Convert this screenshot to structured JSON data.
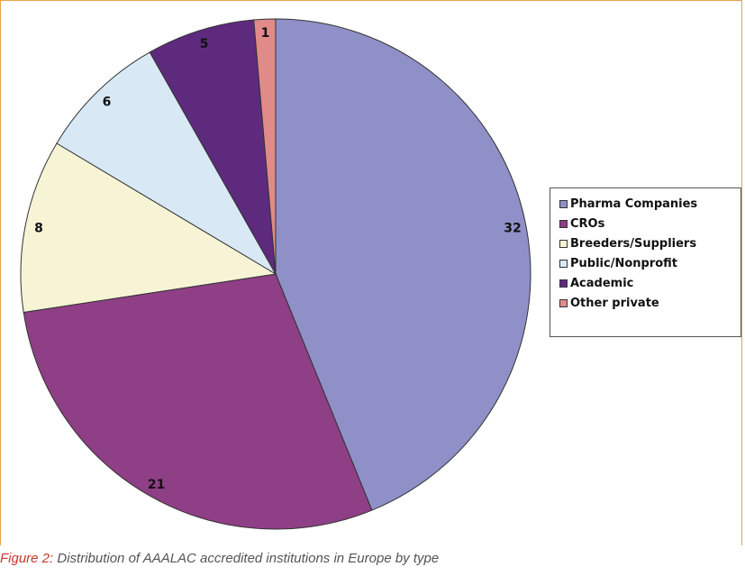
{
  "chart_data": {
    "type": "pie",
    "categories": [
      "Pharma Companies",
      "CROs",
      "Breeders/Suppliers",
      "Public/Nonprofit",
      "Academic",
      "Other private"
    ],
    "slices": [
      {
        "label": "Pharma Companies",
        "value": 32,
        "color": "#9090c8"
      },
      {
        "label": "CROs",
        "value": 21,
        "color": "#8e3f85"
      },
      {
        "label": "Breeders/Suppliers",
        "value": 8,
        "color": "#f7f4d6"
      },
      {
        "label": "Public/Nonprofit",
        "value": 6,
        "color": "#d8e8f4"
      },
      {
        "label": "Academic",
        "value": 5,
        "color": "#5e2a7e"
      },
      {
        "label": "Other private",
        "value": 1,
        "color": "#e08a8a"
      }
    ],
    "start": "top, clockwise",
    "legend_position": "right"
  },
  "caption": {
    "figure_label": "Figure 2:",
    "text": " Distribution of AAALAC accredited institutions in Europe by type"
  }
}
